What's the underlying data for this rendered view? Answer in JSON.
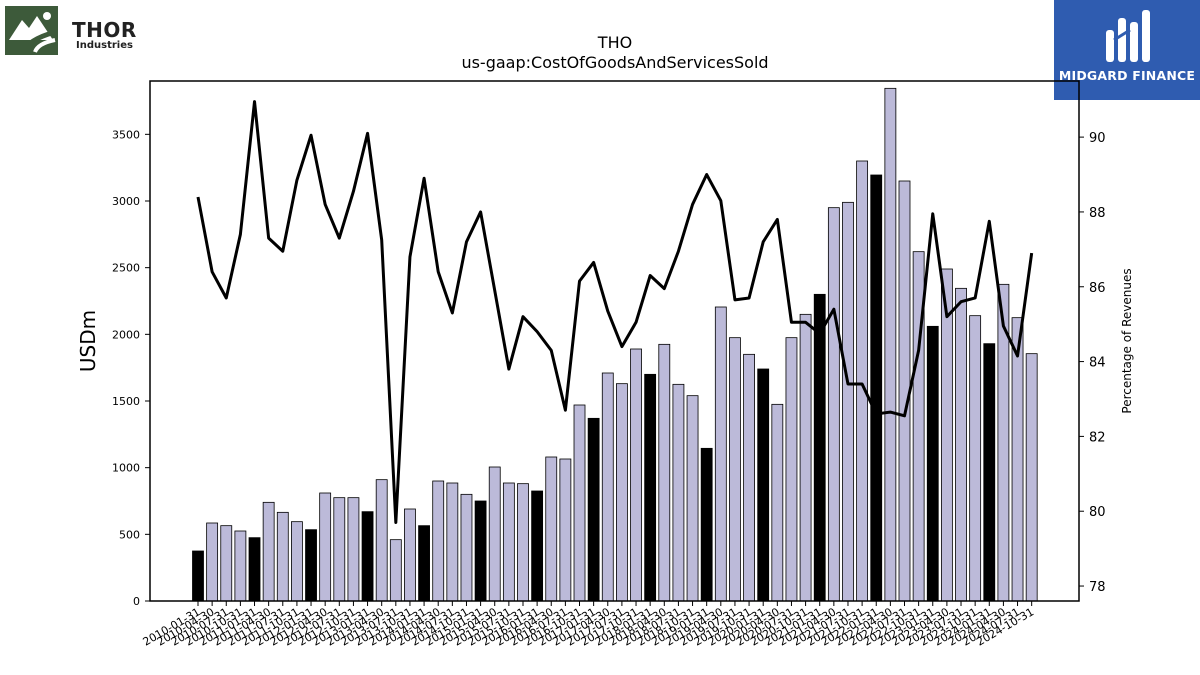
{
  "logos": {
    "left": {
      "name": "THOR",
      "sub": "Industries",
      "icon": "thor-mountain-road-logo",
      "color": "#3d5a3a"
    },
    "right": {
      "name": "MIDGARD FINANCE",
      "icon": "midgard-m-logo",
      "color": "#2f5cb0"
    }
  },
  "chart_data": {
    "type": "bar",
    "title": "THO",
    "subtitle": "us-gaap:CostOfGoodsAndServicesSold",
    "ylabel": "USDm",
    "y2label": "Percentage of Revenues",
    "ylim": [
      0,
      3900
    ],
    "y2lim": [
      77.6,
      91.5
    ],
    "yticks": [
      0,
      500,
      1000,
      1500,
      2000,
      2500,
      3000,
      3500
    ],
    "y2ticks": [
      78,
      80,
      82,
      84,
      86,
      88,
      90
    ],
    "grid": false,
    "legend": "none",
    "colors": {
      "quarter_bar": "#bcbad9",
      "annual_bar": "#000000",
      "line": "#000000"
    },
    "categories": [
      "2010-01-31",
      "2010-04-30",
      "2010-07-31",
      "2010-10-31",
      "2011-01-31",
      "2011-04-30",
      "2011-07-31",
      "2011-10-31",
      "2012-01-31",
      "2012-04-30",
      "2012-07-31",
      "2012-10-31",
      "2013-01-31",
      "2013-04-30",
      "2013-07-31",
      "2013-10-31",
      "2014-01-31",
      "2014-04-30",
      "2014-07-31",
      "2014-10-31",
      "2015-01-31",
      "2015-04-30",
      "2015-07-31",
      "2015-10-31",
      "2016-01-31",
      "2016-04-30",
      "2016-07-31",
      "2016-10-31",
      "2017-01-31",
      "2017-04-30",
      "2017-07-31",
      "2017-10-31",
      "2018-01-31",
      "2018-04-30",
      "2018-07-31",
      "2018-10-31",
      "2019-01-31",
      "2019-04-30",
      "2019-07-31",
      "2019-10-31",
      "2020-01-31",
      "2020-04-30",
      "2020-07-31",
      "2020-10-31",
      "2021-01-31",
      "2021-04-30",
      "2021-07-31",
      "2021-10-31",
      "2022-01-31",
      "2022-04-30",
      "2022-07-31",
      "2022-10-31",
      "2023-01-31",
      "2023-04-30",
      "2023-07-31",
      "2023-10-31",
      "2024-01-31",
      "2024-04-30",
      "2024-07-31",
      "2024-10-31"
    ],
    "series": [
      {
        "kind": "bar",
        "axis": "left",
        "values": [
          375,
          585,
          565,
          525,
          475,
          740,
          665,
          595,
          535,
          810,
          775,
          775,
          670,
          910,
          460,
          690,
          565,
          900,
          885,
          800,
          750,
          1005,
          885,
          880,
          825,
          1080,
          1065,
          1470,
          1370,
          1710,
          1630,
          1890,
          1700,
          1925,
          1625,
          1540,
          1145,
          2205,
          1975,
          1850,
          1740,
          1475,
          1975,
          2150,
          2300,
          2950,
          2990,
          3300,
          3195,
          3845,
          3150,
          2620,
          2060,
          2490,
          2345,
          2140,
          1930,
          2375,
          2125,
          1855
        ],
        "annual": [
          true,
          false,
          false,
          false,
          true,
          false,
          false,
          false,
          true,
          false,
          false,
          false,
          true,
          false,
          false,
          false,
          true,
          false,
          false,
          false,
          true,
          false,
          false,
          false,
          true,
          false,
          false,
          false,
          true,
          false,
          false,
          false,
          true,
          false,
          false,
          false,
          true,
          false,
          false,
          false,
          true,
          false,
          false,
          false,
          true,
          false,
          false,
          false,
          true,
          false,
          false,
          false,
          true,
          false,
          false,
          false,
          true,
          false,
          false,
          false
        ]
      },
      {
        "kind": "line",
        "axis": "right",
        "values": [
          88.4,
          86.4,
          85.7,
          87.4,
          90.95,
          87.3,
          86.95,
          88.85,
          90.05,
          88.2,
          87.3,
          88.55,
          90.1,
          87.25,
          79.7,
          86.8,
          88.9,
          86.4,
          85.3,
          87.2,
          88.0,
          85.9,
          83.8,
          85.2,
          84.8,
          84.3,
          82.7,
          86.15,
          86.65,
          85.35,
          84.4,
          85.05,
          86.3,
          85.95,
          86.95,
          88.2,
          89.0,
          88.3,
          85.65,
          85.7,
          87.2,
          87.8,
          85.05,
          85.05,
          84.75,
          85.4,
          83.4,
          83.4,
          82.6,
          82.65,
          82.55,
          84.3,
          87.95,
          85.2,
          85.6,
          85.7,
          87.75,
          84.95,
          84.15,
          86.9
        ]
      }
    ]
  }
}
